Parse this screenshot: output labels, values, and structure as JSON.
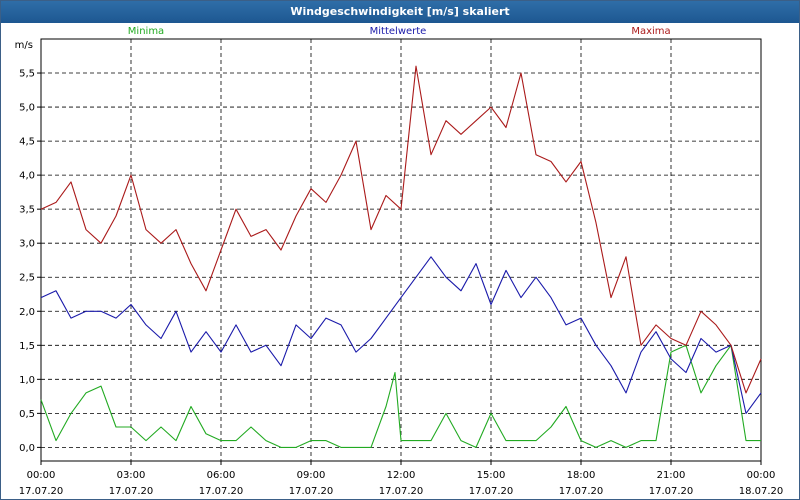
{
  "window": {
    "title": "Windgeschwindigkeit [m/s] skaliert"
  },
  "chart_data": {
    "type": "line",
    "title": "Windgeschwindigkeit [m/s] skaliert",
    "ylabel": "m/s",
    "xlabel": "",
    "ylim": [
      -0.2,
      6.0
    ],
    "xlim": [
      0,
      24
    ],
    "yticks": [
      0.0,
      0.5,
      1.0,
      1.5,
      2.0,
      2.5,
      3.0,
      3.5,
      4.0,
      4.5,
      5.0,
      5.5
    ],
    "ytick_labels": [
      "0,0",
      "0,5",
      "1,0",
      "1,5",
      "2,0",
      "2,5",
      "3,0",
      "3,5",
      "4,0",
      "4,5",
      "5,0",
      "5,5"
    ],
    "xticks": [
      0,
      3,
      6,
      9,
      12,
      15,
      18,
      21,
      24
    ],
    "xtick_labels": [
      [
        "00:00",
        "17.07.20"
      ],
      [
        "03:00",
        "17.07.20"
      ],
      [
        "06:00",
        "17.07.20"
      ],
      [
        "09:00",
        "17.07.20"
      ],
      [
        "12:00",
        "17.07.20"
      ],
      [
        "15:00",
        "17.07.20"
      ],
      [
        "18:00",
        "17.07.20"
      ],
      [
        "21:00",
        "17.07.20"
      ],
      [
        "00:00",
        "18.07.20"
      ]
    ],
    "grid": true,
    "legend": "top",
    "series": [
      {
        "name": "Minima",
        "color": "#22aa22",
        "x": [
          0,
          0.5,
          1,
          1.5,
          2,
          2.5,
          3,
          3.5,
          4,
          4.5,
          5,
          5.5,
          6,
          6.5,
          7,
          7.5,
          8,
          8.5,
          9,
          9.5,
          10,
          10.5,
          11,
          11.5,
          11.8,
          12,
          12.5,
          13,
          13.5,
          14,
          14.5,
          15,
          15.5,
          16,
          16.5,
          17,
          17.5,
          18,
          18.5,
          19,
          19.5,
          20,
          20.5,
          21,
          21.5,
          22,
          22.5,
          23,
          23.5,
          24
        ],
        "y": [
          0.7,
          0.1,
          0.5,
          0.8,
          0.9,
          0.3,
          0.3,
          0.1,
          0.3,
          0.1,
          0.6,
          0.2,
          0.1,
          0.1,
          0.3,
          0.1,
          0.0,
          0.0,
          0.1,
          0.1,
          0.0,
          0.0,
          0.0,
          0.6,
          1.1,
          0.1,
          0.1,
          0.1,
          0.5,
          0.1,
          0.0,
          0.5,
          0.1,
          0.1,
          0.1,
          0.3,
          0.6,
          0.1,
          0.0,
          0.1,
          0.0,
          0.1,
          0.1,
          1.4,
          1.5,
          0.8,
          1.2,
          1.5,
          0.1,
          0.1
        ]
      },
      {
        "name": "Mittelwerte",
        "color": "#1a1aaa",
        "x": [
          0,
          0.5,
          1,
          1.5,
          2,
          2.5,
          3,
          3.5,
          4,
          4.5,
          5,
          5.5,
          6,
          6.5,
          7,
          7.5,
          8,
          8.5,
          9,
          9.5,
          10,
          10.5,
          11,
          11.5,
          12,
          12.5,
          13,
          13.5,
          14,
          14.5,
          15,
          15.5,
          16,
          16.5,
          17,
          17.5,
          18,
          18.5,
          19,
          19.5,
          20,
          20.5,
          21,
          21.5,
          22,
          22.5,
          23,
          23.5,
          24
        ],
        "y": [
          2.2,
          2.3,
          1.9,
          2.0,
          2.0,
          1.9,
          2.1,
          1.8,
          1.6,
          2.0,
          1.4,
          1.7,
          1.4,
          1.8,
          1.4,
          1.5,
          1.2,
          1.8,
          1.6,
          1.9,
          1.8,
          1.4,
          1.6,
          1.9,
          2.2,
          2.5,
          2.8,
          2.5,
          2.3,
          2.7,
          2.1,
          2.6,
          2.2,
          2.5,
          2.2,
          1.8,
          1.9,
          1.5,
          1.2,
          0.8,
          1.4,
          1.7,
          1.3,
          1.1,
          1.6,
          1.4,
          1.5,
          0.5,
          0.8
        ]
      },
      {
        "name": "Maxima",
        "color": "#aa1a1a",
        "x": [
          0,
          0.5,
          1,
          1.5,
          2,
          2.5,
          3,
          3.5,
          4,
          4.5,
          5,
          5.5,
          6,
          6.5,
          7,
          7.5,
          8,
          8.5,
          9,
          9.5,
          10,
          10.5,
          11,
          11.5,
          12,
          12.5,
          13,
          13.5,
          14,
          14.5,
          15,
          15.5,
          16,
          16.5,
          17,
          17.5,
          18,
          18.5,
          19,
          19.5,
          20,
          20.5,
          21,
          21.5,
          22,
          22.5,
          23,
          23.5,
          24
        ],
        "y": [
          3.5,
          3.6,
          3.9,
          3.2,
          3.0,
          3.4,
          4.0,
          3.2,
          3.0,
          3.2,
          2.7,
          2.3,
          2.9,
          3.5,
          3.1,
          3.2,
          2.9,
          3.4,
          3.8,
          3.6,
          4.0,
          4.5,
          3.2,
          3.7,
          3.5,
          5.6,
          4.3,
          4.8,
          4.6,
          4.8,
          5.0,
          4.7,
          5.5,
          4.3,
          4.2,
          3.9,
          4.2,
          3.3,
          2.2,
          2.8,
          1.5,
          1.8,
          1.6,
          1.5,
          2.0,
          1.8,
          1.5,
          0.8,
          1.3
        ]
      }
    ]
  }
}
